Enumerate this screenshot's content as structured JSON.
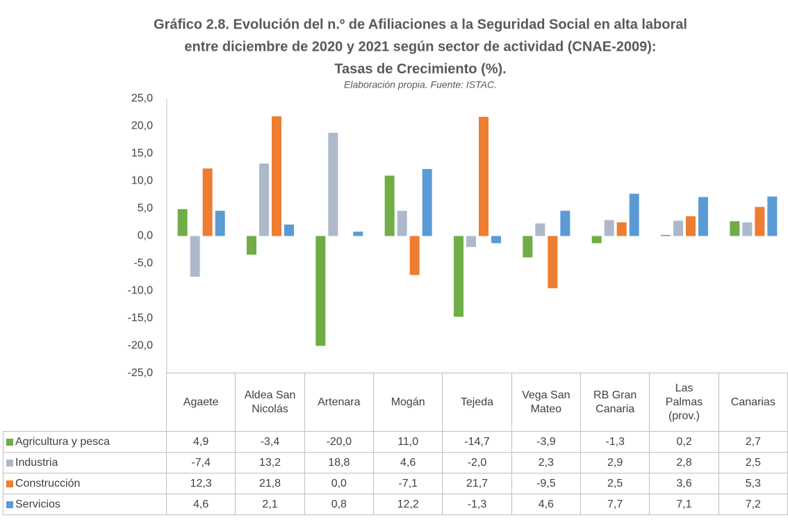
{
  "chart_data": {
    "type": "bar",
    "title": [
      "Gráfico 2.8. Evolución del n.º de Afiliaciones a la Seguridad Social en alta laboral",
      "entre diciembre de 2020 y 2021 según sector de actividad (CNAE-2009):",
      "Tasas de Crecimiento (%)."
    ],
    "subtitle": "Elaboración propia. Fuente: ISTAC.",
    "categories": [
      "Agaete",
      "Aldea San Nicolás",
      "Artenara",
      "Mogán",
      "Tejeda",
      "Vega San Mateo",
      "RB Gran Canaria",
      "Las Palmas (prov.)",
      "Canarias"
    ],
    "series": [
      {
        "name": "Agricultura y pesca",
        "color": "#70ad47",
        "values": [
          4.9,
          -3.4,
          -20.0,
          11.0,
          -14.7,
          -3.9,
          -1.3,
          0.2,
          2.7
        ],
        "value_labels": [
          "4,9",
          "-3,4",
          "-20,0",
          "11,0",
          "-14,7",
          "-3,9",
          "-1,3",
          "0,2",
          "2,7"
        ]
      },
      {
        "name": "Industria",
        "color": "#adb9ca",
        "values": [
          -7.4,
          13.2,
          18.8,
          4.6,
          -2.0,
          2.3,
          2.9,
          2.8,
          2.5
        ],
        "value_labels": [
          "-7,4",
          "13,2",
          "18,8",
          "4,6",
          "-2,0",
          "2,3",
          "2,9",
          "2,8",
          "2,5"
        ]
      },
      {
        "name": "Construcción",
        "color": "#ed7d31",
        "values": [
          12.3,
          21.8,
          0.0,
          -7.1,
          21.7,
          -9.5,
          2.5,
          3.6,
          5.3
        ],
        "value_labels": [
          "12,3",
          "21,8",
          "0,0",
          "-7,1",
          "21,7",
          "-9,5",
          "2,5",
          "3,6",
          "5,3"
        ]
      },
      {
        "name": "Servicios",
        "color": "#5b9bd5",
        "values": [
          4.6,
          2.1,
          0.8,
          12.2,
          -1.3,
          4.6,
          7.7,
          7.1,
          7.2
        ],
        "value_labels": [
          "4,6",
          "2,1",
          "0,8",
          "12,2",
          "-1,3",
          "4,6",
          "7,7",
          "7,1",
          "7,2"
        ]
      }
    ],
    "ylim": [
      -25,
      25
    ],
    "yticks": [
      {
        "value": 25,
        "label": "25,0"
      },
      {
        "value": 20,
        "label": "20,0"
      },
      {
        "value": 15,
        "label": "15,0"
      },
      {
        "value": 10,
        "label": "10,0"
      },
      {
        "value": 5,
        "label": "5,0"
      },
      {
        "value": 0,
        "label": "0,0"
      },
      {
        "value": -5,
        "label": "-5,0"
      },
      {
        "value": -10,
        "label": "-10,0"
      },
      {
        "value": -15,
        "label": "-15,0"
      },
      {
        "value": -20,
        "label": "-20,0"
      },
      {
        "value": -25,
        "label": "-25,0"
      }
    ],
    "grid": false
  }
}
